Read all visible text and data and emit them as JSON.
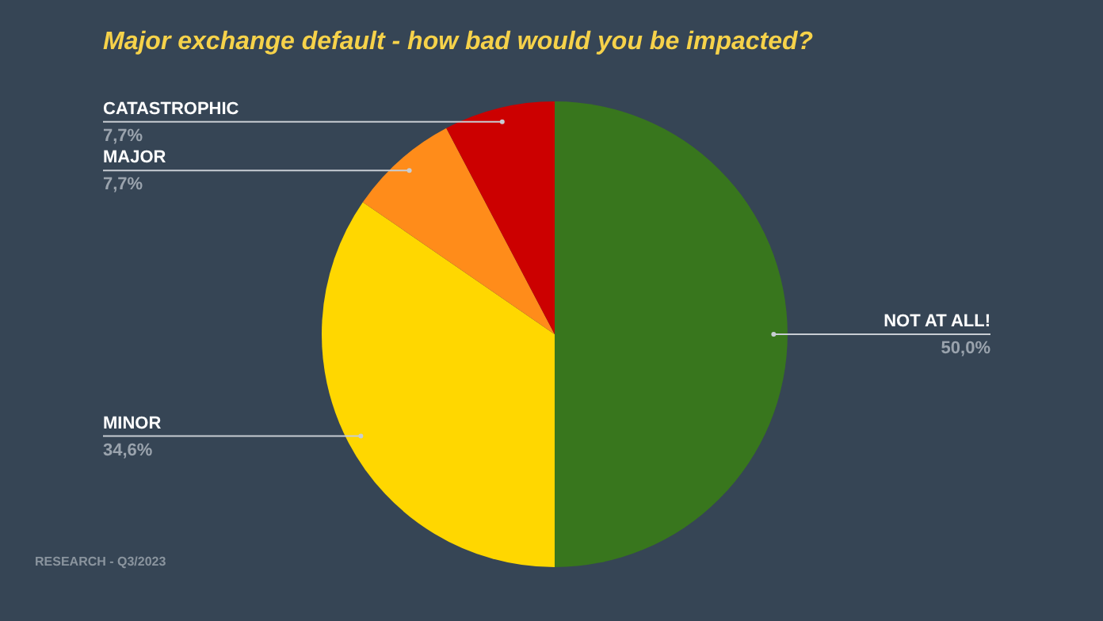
{
  "chart_data": {
    "type": "pie",
    "title": "Major exchange default - how bad would you be impacted?",
    "categories": [
      "NOT AT ALL!",
      "MINOR",
      "MAJOR",
      "CATASTROPHIC"
    ],
    "values": [
      50.0,
      34.6,
      7.7,
      7.7
    ],
    "value_labels": [
      "50,0%",
      "34,6%",
      "7,7%",
      "7,7%"
    ],
    "colors": [
      "#38761d",
      "#ffd700",
      "#ff8c1a",
      "#cc0000"
    ],
    "legend": false,
    "annotations": [
      "RESEARCH - Q3/2023"
    ]
  }
}
